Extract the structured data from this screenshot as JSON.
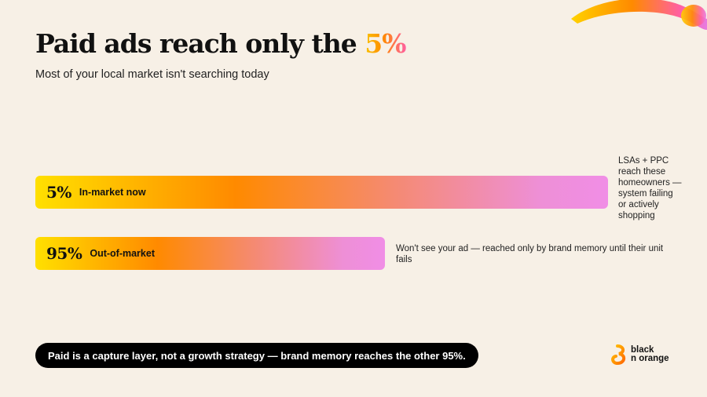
{
  "header": {
    "title_main": "Paid ads reach only the ",
    "title_accent": "5%",
    "subtitle": "Most of your local market isn't searching today"
  },
  "chart_data": {
    "type": "bar",
    "orientation": "horizontal",
    "categories": [
      "In-market now",
      "Out-of-market"
    ],
    "value_labels": [
      "5%",
      "95%"
    ],
    "values": [
      5,
      95
    ],
    "annotations": [
      "LSAs + PPC reach these homeowners — system failing or actively shopping",
      "Won't see your ad — reached only by brand memory until their unit fails"
    ]
  },
  "footer": {
    "callout": "Paid is a capture layer, not a growth strategy — brand memory reaches the other 95%."
  },
  "logo": {
    "line1": "black",
    "line2": "n orange"
  },
  "colors": {
    "background": "#f7f0e6",
    "gradient_start": "#ffe000",
    "gradient_mid": "#ff8a00",
    "gradient_end": "#f08ee6",
    "callout_bg": "#000000"
  }
}
